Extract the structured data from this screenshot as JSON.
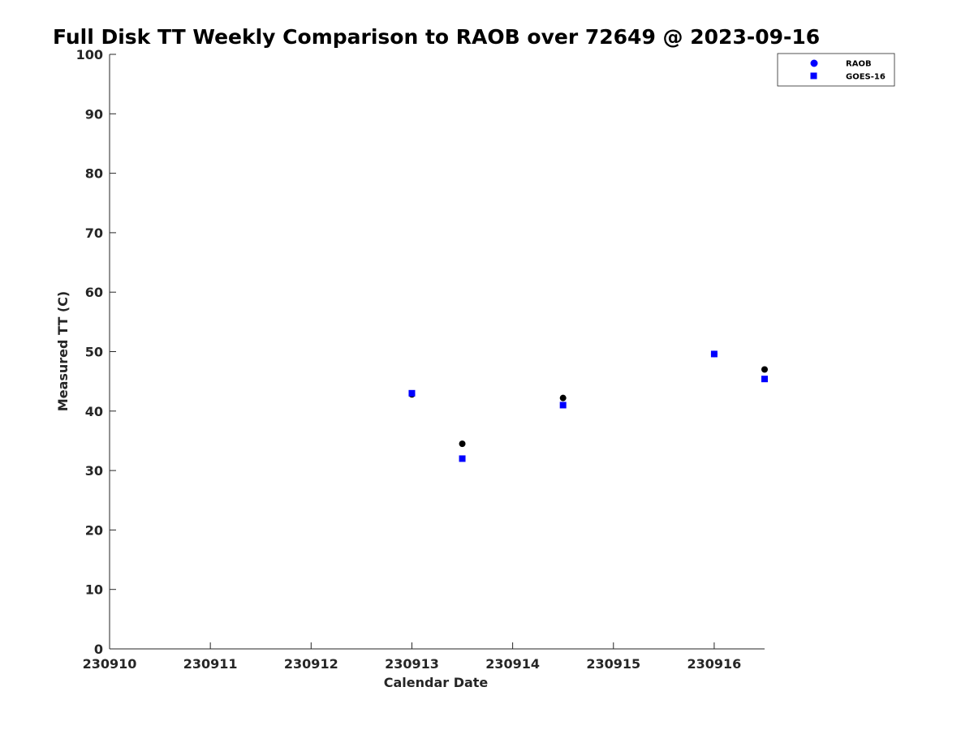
{
  "chart_data": {
    "type": "scatter",
    "title": "Full Disk TT Weekly Comparison to RAOB over 72649 @ 2023-09-16",
    "xlabel": "Calendar Date",
    "ylabel": "Measured TT (C)",
    "xlim": [
      230910,
      230916.5
    ],
    "ylim": [
      0,
      100
    ],
    "xticks": [
      230910,
      230911,
      230912,
      230913,
      230914,
      230915,
      230916
    ],
    "xtick_labels": [
      "230910",
      "230911",
      "230912",
      "230913",
      "230914",
      "230915",
      "230916"
    ],
    "yticks": [
      0,
      10,
      20,
      30,
      40,
      50,
      60,
      70,
      80,
      90,
      100
    ],
    "ytick_labels": [
      "0",
      "10",
      "20",
      "30",
      "40",
      "50",
      "60",
      "70",
      "80",
      "90",
      "100"
    ],
    "grid": false,
    "legend_position": "top-right",
    "series": [
      {
        "name": "RAOB",
        "marker": "circle",
        "color": "#000000",
        "legend_color": "#0000ff",
        "x": [
          230913.0,
          230913.5,
          230914.5,
          230916.0,
          230916.5
        ],
        "y": [
          42.8,
          34.5,
          42.2,
          49.6,
          47.0
        ]
      },
      {
        "name": "GOES-16",
        "marker": "square",
        "color": "#0000ff",
        "x": [
          230913.0,
          230913.5,
          230914.5,
          230916.0,
          230916.5
        ],
        "y": [
          43.0,
          32.0,
          41.0,
          49.6,
          45.4
        ]
      }
    ]
  }
}
